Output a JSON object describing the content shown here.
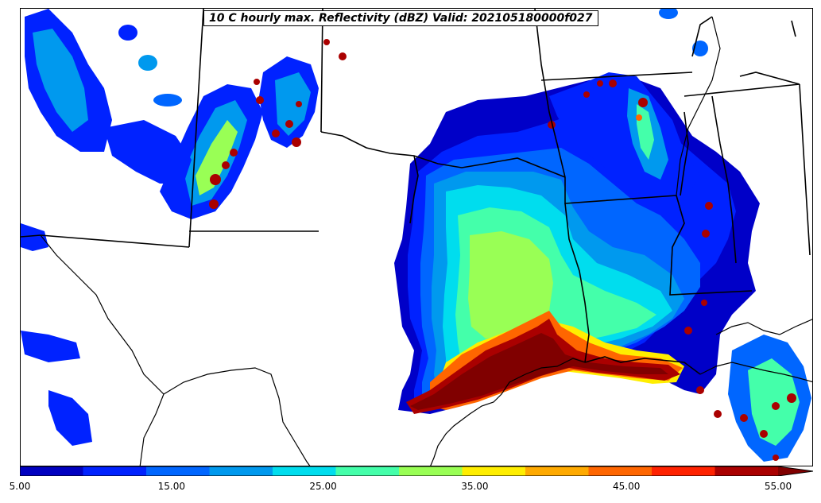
{
  "title": "10 C hourly max. Reflectivity (dBZ) Valid: 202105180000f027",
  "colorbar": {
    "colors": [
      "#0000c0",
      "#0022ff",
      "#0066ff",
      "#0099ee",
      "#00ddee",
      "#44ffaa",
      "#99ff55",
      "#ffee00",
      "#ffaa00",
      "#ff6600",
      "#ff2200",
      "#aa0000",
      "#800000"
    ],
    "tick_labels": [
      "5.00",
      "15.00",
      "25.00",
      "35.00",
      "45.00",
      "55.00"
    ],
    "min": 5,
    "max": 57.5,
    "extend": "max"
  },
  "legend": {
    "levels": [
      5,
      10,
      15,
      20,
      25,
      30,
      35,
      40,
      45,
      50,
      55
    ]
  }
}
